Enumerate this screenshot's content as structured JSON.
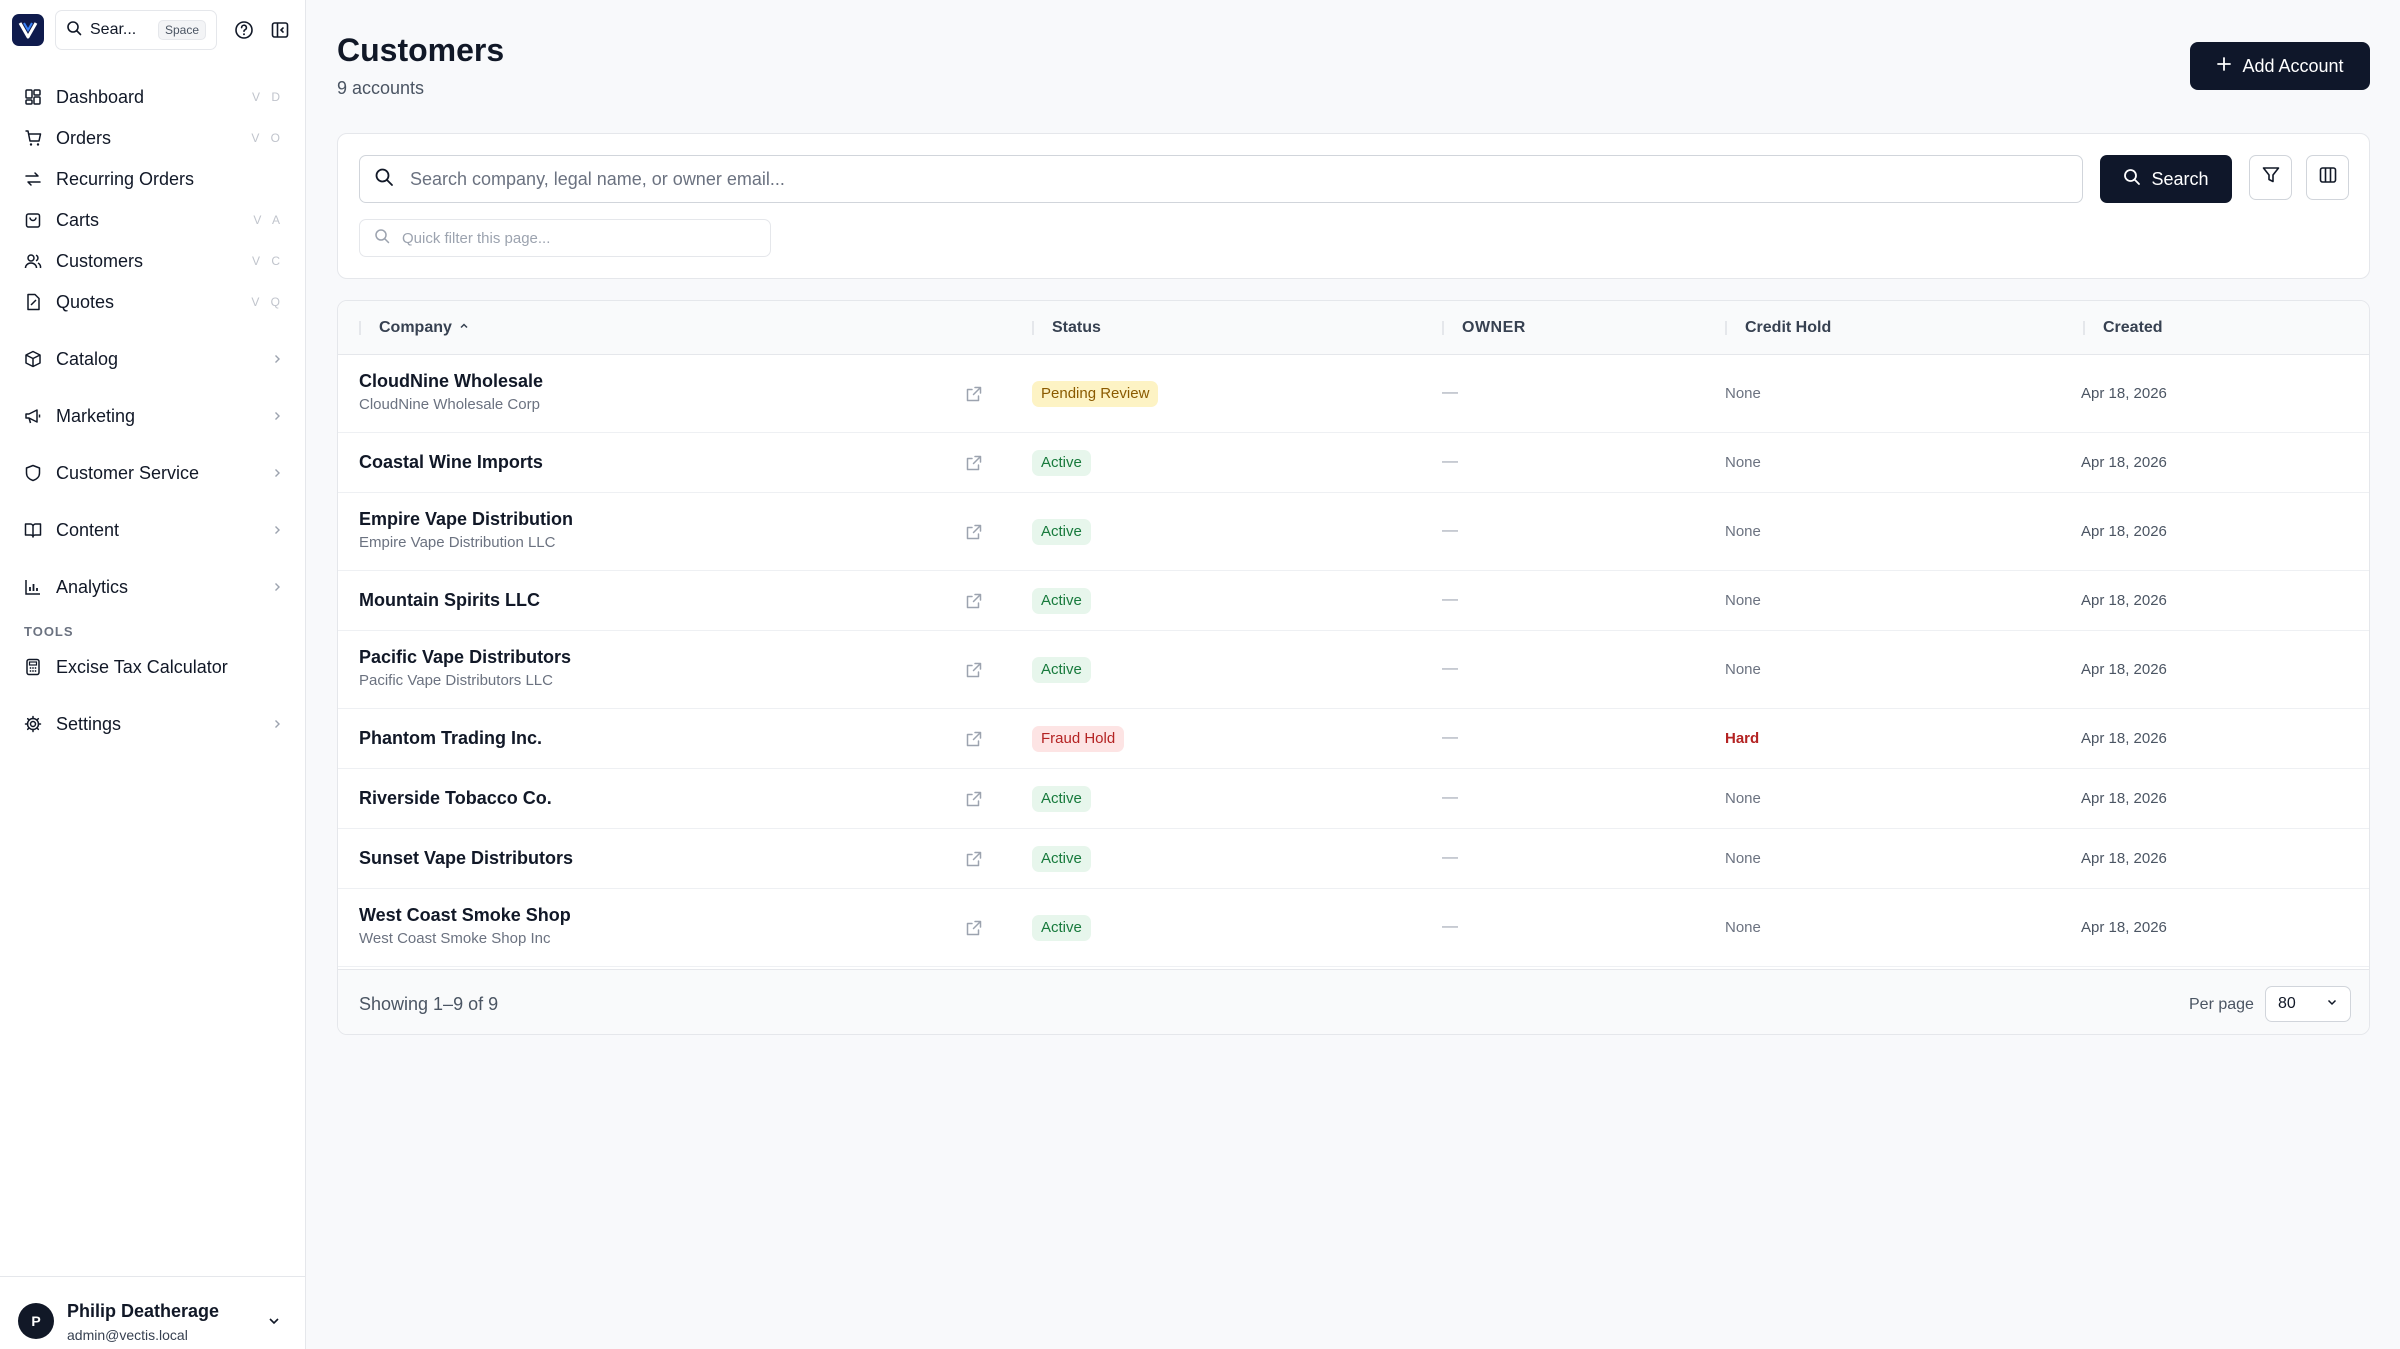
{
  "sidebar": {
    "search_label": "Sear...",
    "search_kbd": "Space",
    "nav": [
      {
        "label": "Dashboard",
        "shortcut": "V D",
        "icon": "dashboard-icon"
      },
      {
        "label": "Orders",
        "shortcut": "V O",
        "icon": "cart-icon"
      },
      {
        "label": "Recurring Orders",
        "shortcut": "",
        "icon": "repeat-icon"
      },
      {
        "label": "Carts",
        "shortcut": "V A",
        "icon": "bag-icon"
      },
      {
        "label": "Customers",
        "shortcut": "V C",
        "icon": "users-icon"
      },
      {
        "label": "Quotes",
        "shortcut": "V Q",
        "icon": "quote-icon"
      },
      {
        "label": "Catalog",
        "icon": "box-icon"
      },
      {
        "label": "Marketing",
        "icon": "megaphone-icon"
      },
      {
        "label": "Customer Service",
        "icon": "shield-icon"
      },
      {
        "label": "Content",
        "icon": "book-icon"
      },
      {
        "label": "Analytics",
        "icon": "chart-icon"
      }
    ],
    "tools_label": "TOOLS",
    "tools": [
      {
        "label": "Excise Tax Calculator",
        "icon": "calculator-icon"
      }
    ],
    "settings_label": "Settings",
    "user": {
      "initial": "P",
      "name": "Philip Deatherage",
      "email": "admin@vectis.local"
    }
  },
  "header": {
    "title": "Customers",
    "subtitle": "9 accounts",
    "add_button": "Add Account"
  },
  "search": {
    "placeholder": "Search company, legal name, or owner email...",
    "button": "Search",
    "quick_filter_placeholder": "Quick filter this page..."
  },
  "table": {
    "columns": {
      "company": "Company",
      "status": "Status",
      "owner": "OWNER",
      "credit": "Credit Hold",
      "created": "Created"
    },
    "rows": [
      {
        "name": "CloudNine Wholesale",
        "legal": "CloudNine Wholesale Corp",
        "status": "Pending Review",
        "owner": "—",
        "credit": "None",
        "created": "Apr 18, 2026"
      },
      {
        "name": "Coastal Wine Imports",
        "legal": "",
        "status": "Active",
        "owner": "—",
        "credit": "None",
        "created": "Apr 18, 2026"
      },
      {
        "name": "Empire Vape Distribution",
        "legal": "Empire Vape Distribution LLC",
        "status": "Active",
        "owner": "—",
        "credit": "None",
        "created": "Apr 18, 2026"
      },
      {
        "name": "Mountain Spirits LLC",
        "legal": "",
        "status": "Active",
        "owner": "—",
        "credit": "None",
        "created": "Apr 18, 2026"
      },
      {
        "name": "Pacific Vape Distributors",
        "legal": "Pacific Vape Distributors LLC",
        "status": "Active",
        "owner": "—",
        "credit": "None",
        "created": "Apr 18, 2026"
      },
      {
        "name": "Phantom Trading Inc.",
        "legal": "",
        "status": "Fraud Hold",
        "owner": "—",
        "credit": "Hard",
        "created": "Apr 18, 2026"
      },
      {
        "name": "Riverside Tobacco Co.",
        "legal": "",
        "status": "Active",
        "owner": "—",
        "credit": "None",
        "created": "Apr 18, 2026"
      },
      {
        "name": "Sunset Vape Distributors",
        "legal": "",
        "status": "Active",
        "owner": "—",
        "credit": "None",
        "created": "Apr 18, 2026"
      },
      {
        "name": "West Coast Smoke Shop",
        "legal": "West Coast Smoke Shop Inc",
        "status": "Active",
        "owner": "—",
        "credit": "None",
        "created": "Apr 18, 2026"
      }
    ],
    "showing": "Showing 1–9 of 9",
    "per_page_label": "Per page",
    "per_page_value": "80"
  },
  "colors": {
    "primary": "#0f172a",
    "active": "#177a3c",
    "pending": "#8a5a00",
    "fraud": "#b42323"
  }
}
